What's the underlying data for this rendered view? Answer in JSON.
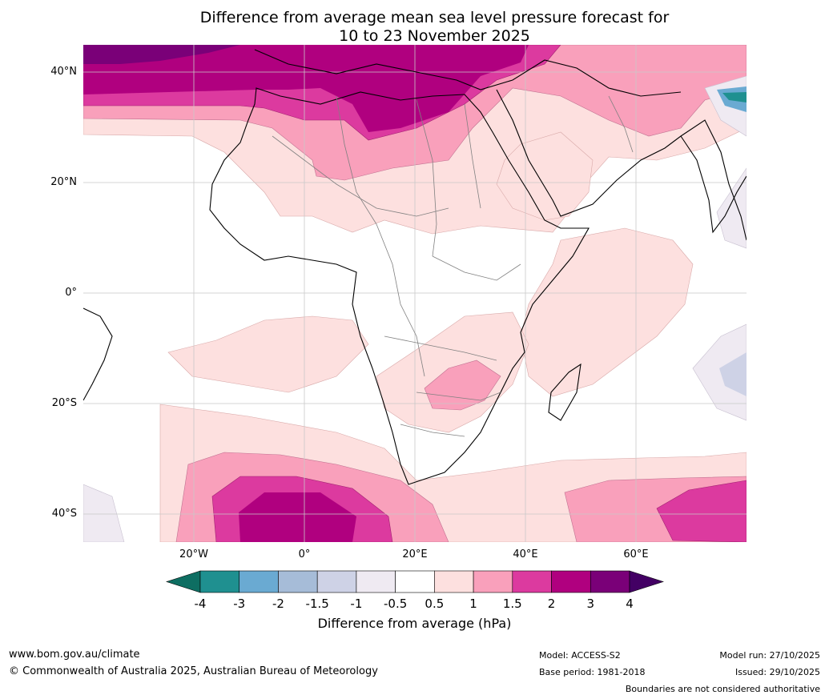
{
  "title": {
    "line1": "Difference from average mean sea level pressure forecast for",
    "line2": "10 to 23 November 2025"
  },
  "axes": {
    "lat_labels": [
      "40°N",
      "20°N",
      "0°",
      "20°S",
      "40°S"
    ],
    "lon_labels": [
      "20°W",
      "0°",
      "20°E",
      "40°E",
      "60°E"
    ]
  },
  "colorbar": {
    "ticks": [
      "-4",
      "-3",
      "-2",
      "-1.5",
      "-1",
      "-0.5",
      "0.5",
      "1",
      "1.5",
      "2",
      "3",
      "4"
    ],
    "colors": [
      "#0e6e62",
      "#1f9090",
      "#6aaad2",
      "#a6bcd8",
      "#ced2e6",
      "#efeaf2",
      "#ffffff",
      "#fde0df",
      "#f9a0bb",
      "#dc3a9f",
      "#b0007f",
      "#7a0078",
      "#430064"
    ],
    "label": "Difference from average (hPa)"
  },
  "footer": {
    "website": "www.bom.gov.au/climate",
    "copyright": "© Commonwealth of Australia 2025, Australian Bureau of Meteorology",
    "model": "Model: ACCESS-S2",
    "base_period": "Base period: 1981-2018",
    "model_run": "Model run: 27/10/2025",
    "issued": "Issued: 29/10/2025",
    "disclaimer": "Boundaries are not considered authoritative"
  }
}
